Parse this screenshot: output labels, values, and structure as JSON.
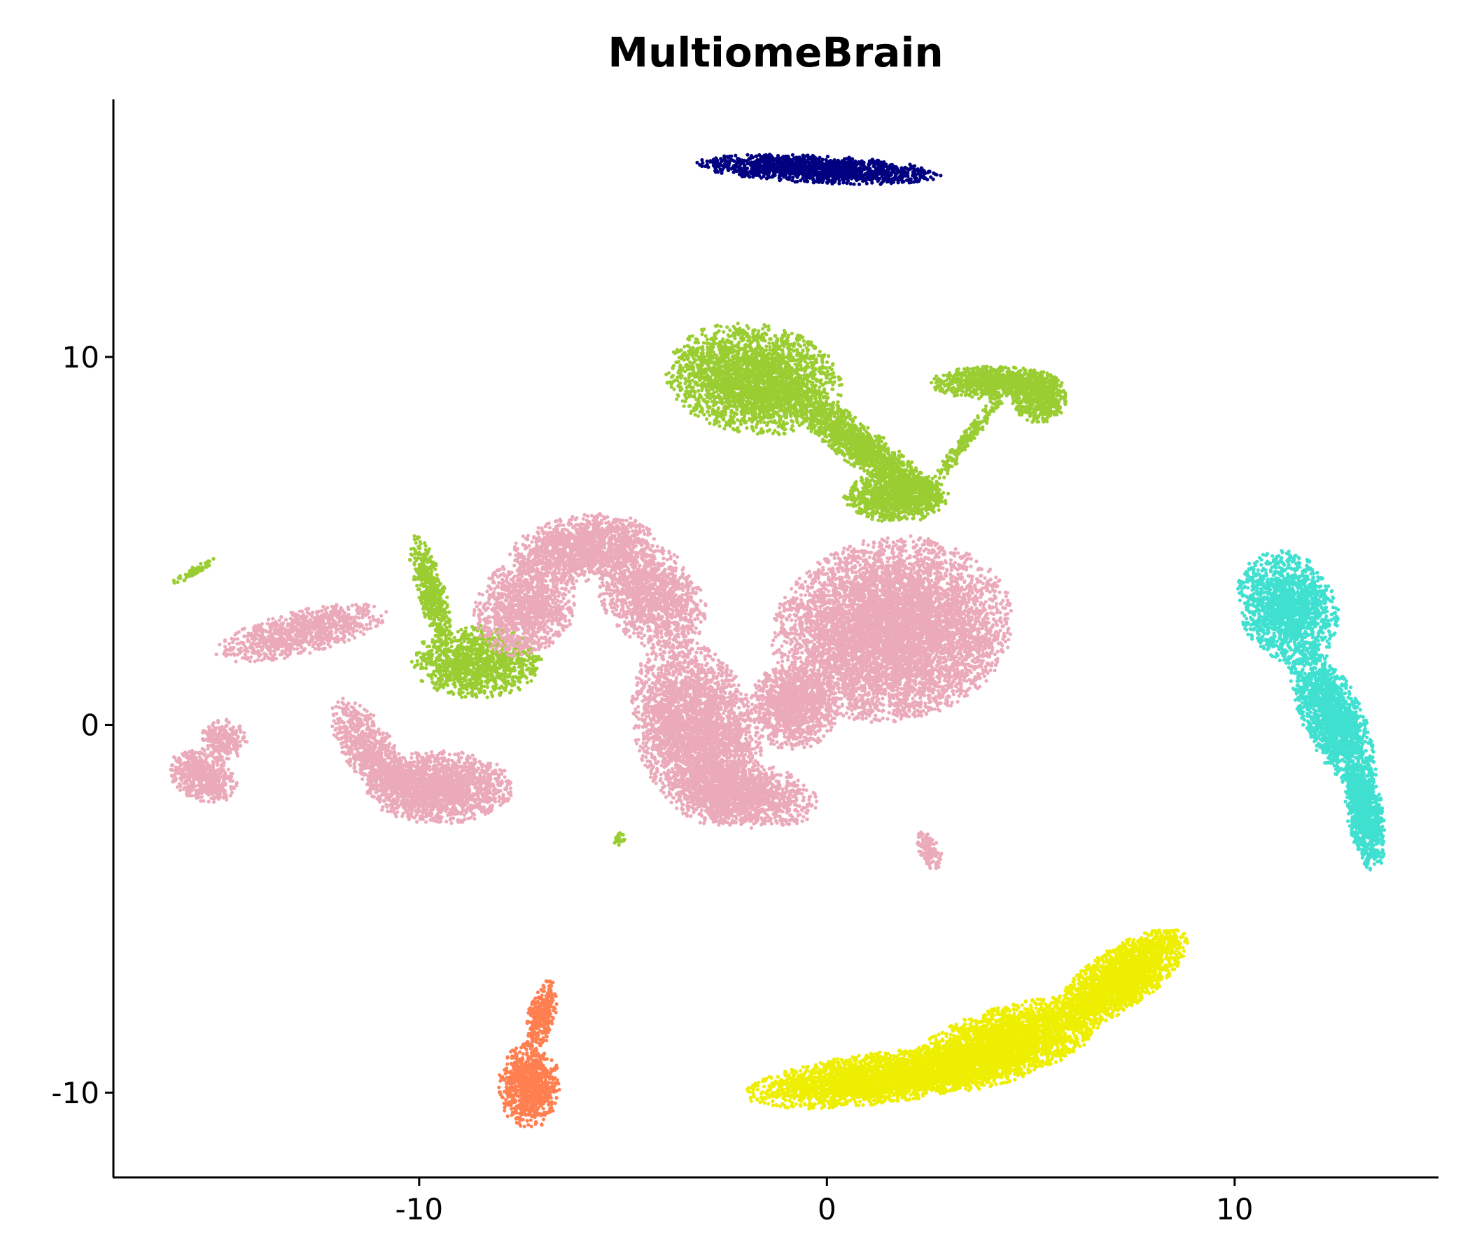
{
  "chart_data": {
    "type": "scatter",
    "title": "MultiomeBrain",
    "xlabel": "",
    "ylabel": "",
    "xlim": [
      -17.5,
      15
    ],
    "ylim": [
      -12.3,
      17
    ],
    "xticks": [
      -10,
      0,
      10
    ],
    "yticks": [
      -10,
      0,
      10
    ],
    "xtick_labels": [
      "-10",
      "0",
      "10"
    ],
    "ytick_labels": [
      "-10",
      "0",
      "10"
    ],
    "grid": false,
    "legend": "none",
    "spines": [
      "left",
      "bottom"
    ],
    "clusters": [
      {
        "color": "#000080",
        "regions": [
          {
            "shape": "ellipse",
            "center": [
              -0.2,
              15.1
            ],
            "radii": [
              3.0,
              0.38
            ],
            "rotation_deg": -3,
            "n": 1500
          }
        ]
      },
      {
        "color": "#9acd32",
        "regions": [
          {
            "shape": "ellipse",
            "center": [
              -1.8,
              9.4
            ],
            "radii": [
              2.2,
              1.5
            ],
            "rotation_deg": -10,
            "n": 2600
          },
          {
            "shape": "ellipse",
            "center": [
              0.8,
              7.6
            ],
            "radii": [
              2.6,
              0.55
            ],
            "rotation_deg": -40,
            "n": 1300
          },
          {
            "shape": "ellipse",
            "center": [
              1.7,
              6.2
            ],
            "radii": [
              1.3,
              0.7
            ],
            "rotation_deg": 0,
            "n": 1000
          },
          {
            "shape": "ellipse",
            "center": [
              4.1,
              9.3
            ],
            "radii": [
              1.6,
              0.45
            ],
            "rotation_deg": 0,
            "n": 900
          },
          {
            "shape": "ellipse",
            "center": [
              5.2,
              8.9
            ],
            "radii": [
              0.7,
              0.7
            ],
            "rotation_deg": 0,
            "n": 500
          },
          {
            "shape": "ellipse",
            "center": [
              3.4,
              7.7
            ],
            "radii": [
              2.0,
              0.18
            ],
            "rotation_deg": 55,
            "n": 220
          },
          {
            "shape": "ellipse",
            "center": [
              -8.6,
              1.7
            ],
            "radii": [
              1.6,
              1.0
            ],
            "rotation_deg": 0,
            "n": 1200
          },
          {
            "shape": "ellipse",
            "center": [
              -9.7,
              3.6
            ],
            "radii": [
              1.7,
              0.35
            ],
            "rotation_deg": -75,
            "n": 500
          },
          {
            "shape": "ellipse",
            "center": [
              -15.5,
              4.2
            ],
            "radii": [
              0.65,
              0.13
            ],
            "rotation_deg": 30,
            "n": 60
          },
          {
            "shape": "ellipse",
            "center": [
              -5.1,
              -3.1
            ],
            "radii": [
              0.14,
              0.18
            ],
            "rotation_deg": 0,
            "n": 30
          }
        ]
      },
      {
        "color": "#ebaab9",
        "regions": [
          {
            "shape": "ellipse",
            "center": [
              -15.3,
              -1.4
            ],
            "radii": [
              0.9,
              0.65
            ],
            "rotation_deg": -30,
            "n": 600
          },
          {
            "shape": "ellipse",
            "center": [
              -14.8,
              -0.4
            ],
            "radii": [
              0.6,
              0.55
            ],
            "rotation_deg": 0,
            "n": 250
          },
          {
            "shape": "ellipse",
            "center": [
              -12.9,
              2.5
            ],
            "radii": [
              2.2,
              0.6
            ],
            "rotation_deg": 15,
            "n": 900
          },
          {
            "shape": "ellipse",
            "center": [
              -11.2,
              -0.7
            ],
            "radii": [
              1.6,
              0.65
            ],
            "rotation_deg": -60,
            "n": 800
          },
          {
            "shape": "ellipse",
            "center": [
              -9.5,
              -1.7
            ],
            "radii": [
              1.8,
              1.0
            ],
            "rotation_deg": 0,
            "n": 1800
          },
          {
            "shape": "ellipse",
            "center": [
              -7.4,
              3.2
            ],
            "radii": [
              1.2,
              1.4
            ],
            "rotation_deg": -35,
            "n": 1200
          },
          {
            "shape": "ellipse",
            "center": [
              -6.0,
              4.8
            ],
            "radii": [
              1.8,
              0.9
            ],
            "rotation_deg": 10,
            "n": 1400
          },
          {
            "shape": "ellipse",
            "center": [
              -4.3,
              3.5
            ],
            "radii": [
              1.2,
              1.6
            ],
            "rotation_deg": 35,
            "n": 1300
          },
          {
            "shape": "ellipse",
            "center": [
              -3.2,
              -0.2
            ],
            "radii": [
              1.5,
              2.6
            ],
            "rotation_deg": 15,
            "n": 3200
          },
          {
            "shape": "ellipse",
            "center": [
              -2.0,
              -1.9
            ],
            "radii": [
              1.8,
              0.9
            ],
            "rotation_deg": -10,
            "n": 1300
          },
          {
            "shape": "ellipse",
            "center": [
              -0.8,
              0.5
            ],
            "radii": [
              1.1,
              1.2
            ],
            "rotation_deg": 0,
            "n": 1200
          },
          {
            "shape": "ellipse",
            "center": [
              1.6,
              2.6
            ],
            "radii": [
              3.0,
              2.5
            ],
            "rotation_deg": 15,
            "n": 6500
          },
          {
            "shape": "ellipse",
            "center": [
              2.5,
              -3.4
            ],
            "radii": [
              0.28,
              0.55
            ],
            "rotation_deg": 20,
            "n": 120
          }
        ]
      },
      {
        "color": "#40e0d0",
        "regions": [
          {
            "shape": "ellipse",
            "center": [
              11.3,
              3.2
            ],
            "radii": [
              1.2,
              1.6
            ],
            "rotation_deg": 20,
            "n": 1600
          },
          {
            "shape": "ellipse",
            "center": [
              12.4,
              0.2
            ],
            "radii": [
              0.75,
              2.2
            ],
            "rotation_deg": 22,
            "n": 1700
          },
          {
            "shape": "ellipse",
            "center": [
              13.2,
              -2.4
            ],
            "radii": [
              0.45,
              1.6
            ],
            "rotation_deg": 8,
            "n": 900
          }
        ]
      },
      {
        "color": "#eeee00",
        "regions": [
          {
            "shape": "ellipse",
            "center": [
              1.3,
              -9.6
            ],
            "radii": [
              3.4,
              0.7
            ],
            "rotation_deg": 8,
            "n": 2800
          },
          {
            "shape": "ellipse",
            "center": [
              4.3,
              -8.7
            ],
            "radii": [
              2.6,
              1.0
            ],
            "rotation_deg": 20,
            "n": 3000
          },
          {
            "shape": "ellipse",
            "center": [
              7.2,
              -6.9
            ],
            "radii": [
              2.0,
              0.8
            ],
            "rotation_deg": 38,
            "n": 2200
          }
        ]
      },
      {
        "color": "#ff7f50",
        "regions": [
          {
            "shape": "ellipse",
            "center": [
              -7.3,
              -9.8
            ],
            "radii": [
              0.75,
              1.2
            ],
            "rotation_deg": 0,
            "n": 800
          },
          {
            "shape": "ellipse",
            "center": [
              -7.0,
              -7.9
            ],
            "radii": [
              0.35,
              1.0
            ],
            "rotation_deg": -12,
            "n": 300
          }
        ]
      }
    ]
  }
}
